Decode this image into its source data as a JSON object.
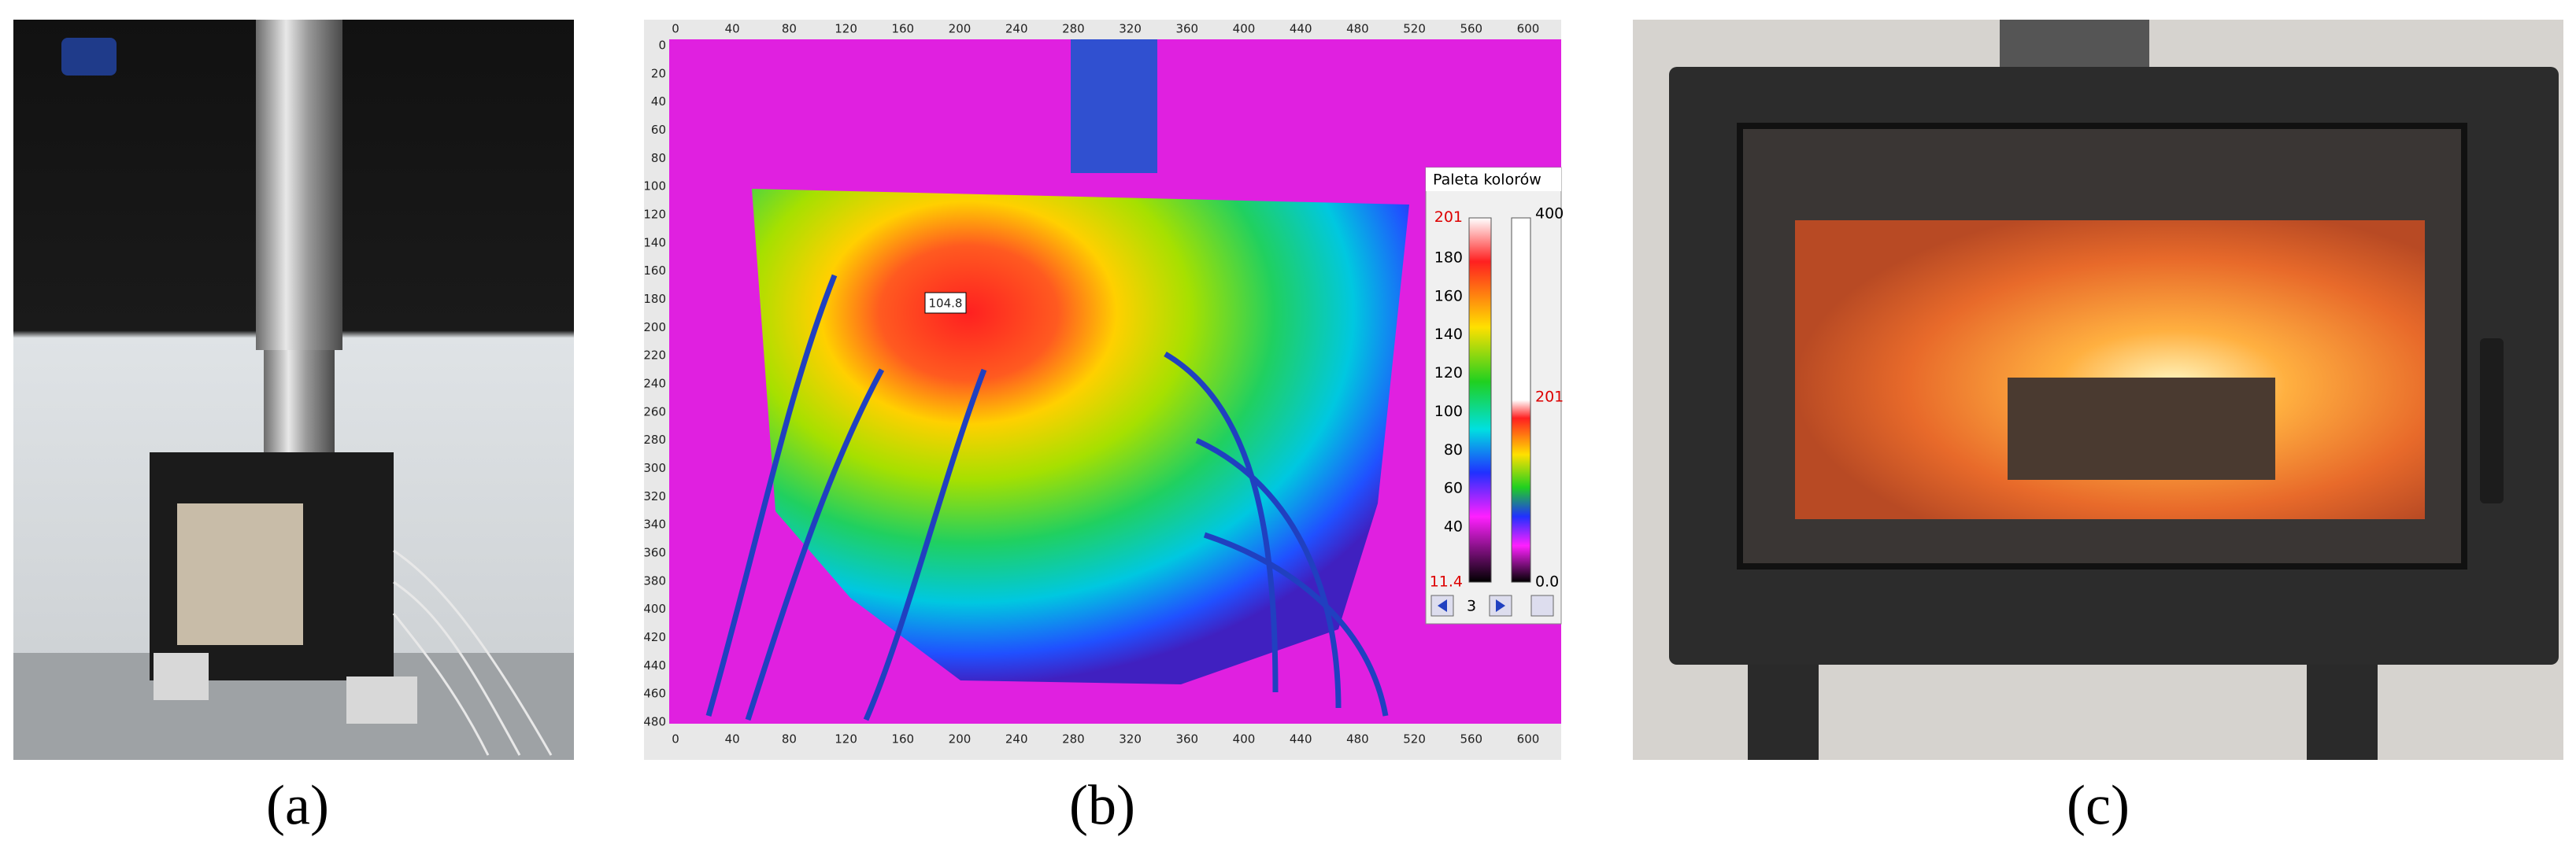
{
  "panels": [
    {
      "label": "(a)"
    },
    {
      "label": "(b)"
    },
    {
      "label": "(c)"
    }
  ],
  "thermal": {
    "x_ticks": [
      "0",
      "40",
      "80",
      "120",
      "160",
      "200",
      "240",
      "280",
      "320",
      "360",
      "400",
      "440",
      "480",
      "520",
      "560",
      "600"
    ],
    "y_ticks": [
      "0",
      "20",
      "40",
      "60",
      "80",
      "100",
      "120",
      "140",
      "160",
      "180",
      "200",
      "220",
      "240",
      "260",
      "280",
      "300",
      "320",
      "340",
      "360",
      "380",
      "400",
      "420",
      "440",
      "460",
      "480"
    ],
    "marker_label": "104.8",
    "palette": {
      "title": "Paleta kolorów",
      "left_ticks": [
        "201",
        "180",
        "160",
        "140",
        "120",
        "100",
        "80",
        "60",
        "40",
        "11.4"
      ],
      "right_ticks": [
        "400",
        "201",
        "0.0"
      ],
      "step": "3"
    }
  }
}
